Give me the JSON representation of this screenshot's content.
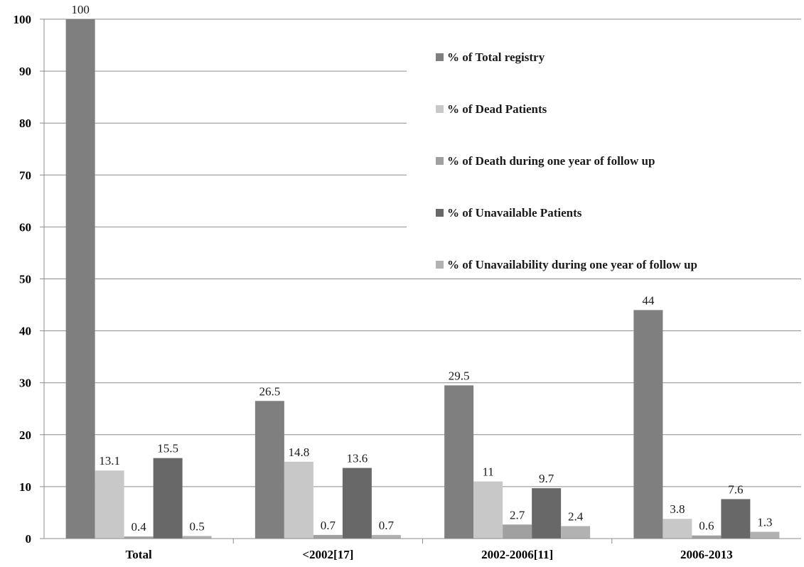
{
  "chart_data": {
    "type": "bar",
    "categories": [
      "Total",
      "<2002[17]",
      "2002-2006[11]",
      "2006-2013"
    ],
    "series": [
      {
        "name": "% of Total registry",
        "color": "#7f7f7f",
        "values": [
          100,
          26.5,
          29.5,
          44
        ]
      },
      {
        "name": "% of Dead Patients",
        "color": "#c8c8c8",
        "values": [
          13.1,
          14.8,
          11,
          3.8
        ]
      },
      {
        "name": "% of Death during one year of follow up",
        "color": "#a0a0a0",
        "values": [
          0.4,
          0.7,
          2.7,
          0.6
        ]
      },
      {
        "name": "% of Unavailable Patients",
        "color": "#686868",
        "values": [
          15.5,
          13.6,
          9.7,
          7.6
        ]
      },
      {
        "name": "% of Unavailability during one year of follow up",
        "color": "#b2b2b2",
        "values": [
          0.5,
          0.7,
          2.4,
          1.3
        ]
      }
    ],
    "data_labels": [
      [
        "100",
        "26.5",
        "29.5",
        "44"
      ],
      [
        "13.1",
        "14.8",
        "11",
        "3.8"
      ],
      [
        "0.4",
        "0.7",
        "2.7",
        "0.6"
      ],
      [
        "15.5",
        "13.6",
        "9.7",
        "7.6"
      ],
      [
        "0.5",
        "0.7",
        "2.4",
        "1.3"
      ]
    ],
    "yticks": [
      "0",
      "10",
      "20",
      "30",
      "40",
      "50",
      "60",
      "70",
      "80",
      "90",
      "100"
    ],
    "ylim": [
      0,
      100
    ],
    "title": "",
    "xlabel": "",
    "ylabel": "",
    "grid": true,
    "legend_position": "top-right"
  }
}
